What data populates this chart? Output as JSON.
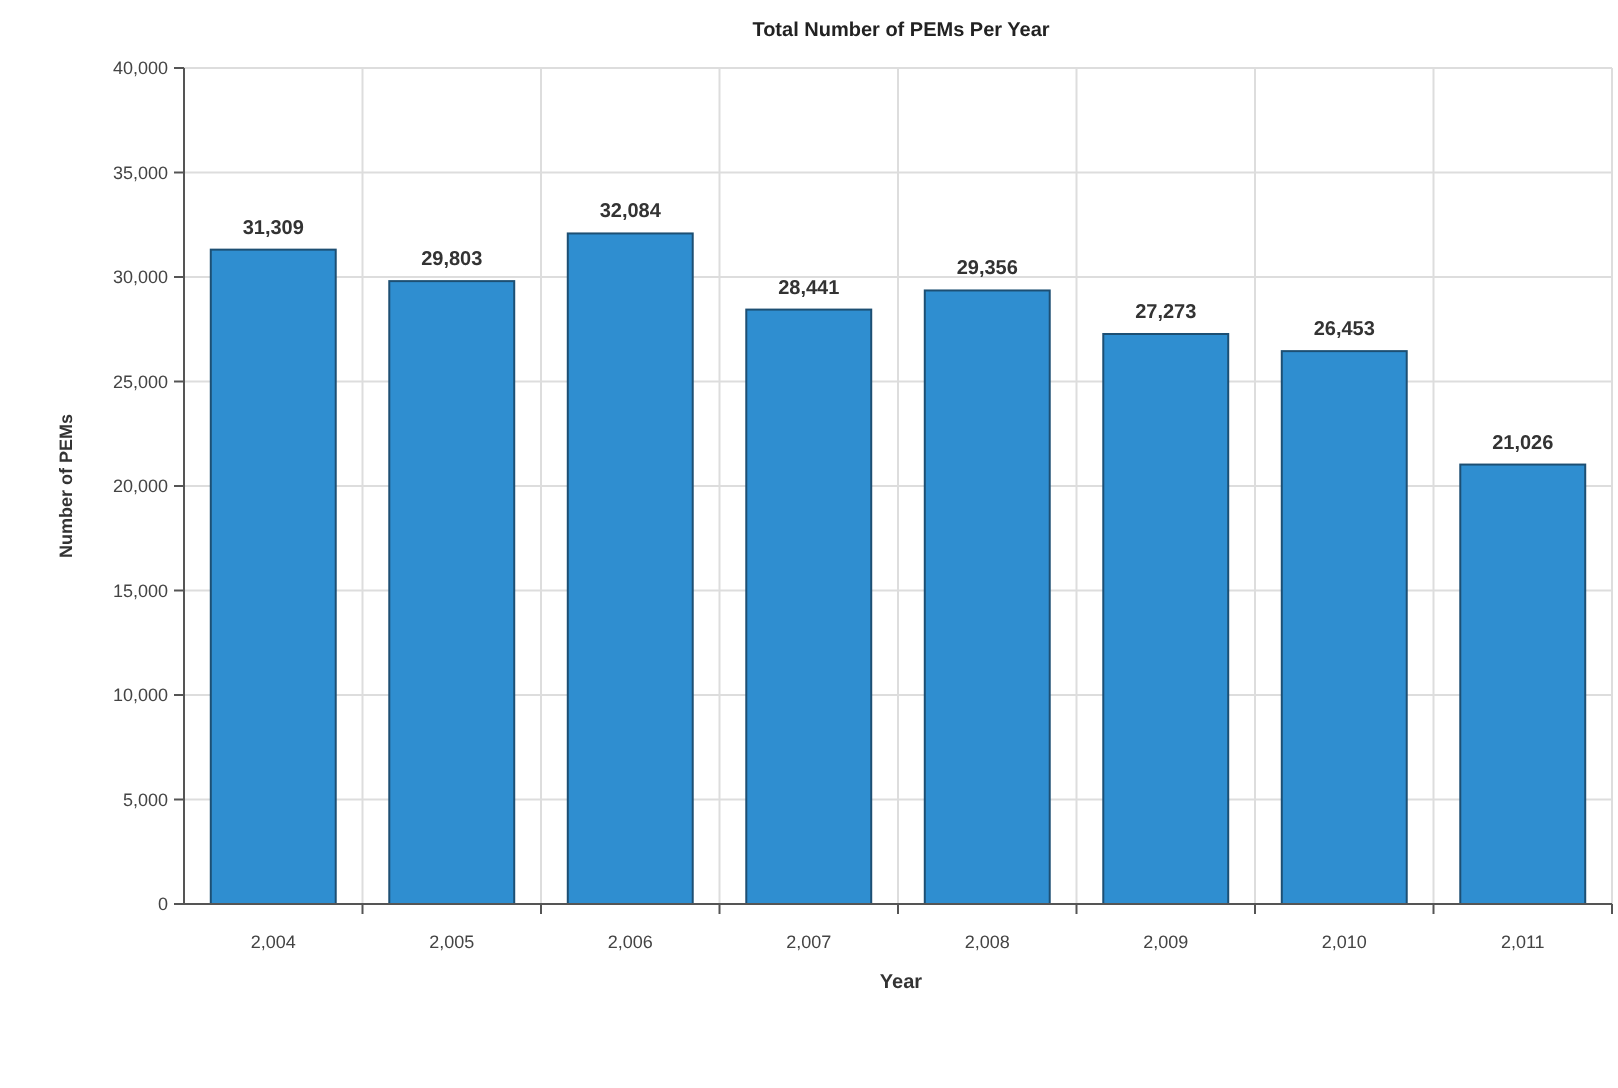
{
  "chart_data": {
    "type": "bar",
    "title": "Total Number of PEMs Per Year",
    "xlabel": "Year",
    "ylabel": "Number of PEMs",
    "categories": [
      "2,004",
      "2,005",
      "2,006",
      "2,007",
      "2,008",
      "2,009",
      "2,010",
      "2,011"
    ],
    "values": [
      31309,
      29803,
      32084,
      28441,
      29356,
      27273,
      26453,
      21026
    ],
    "value_labels": [
      "31,309",
      "29,803",
      "32,084",
      "28,441",
      "29,356",
      "27,273",
      "26,453",
      "21,026"
    ],
    "color": "#2f8ed0",
    "grid": true,
    "ylim": [
      0,
      40000
    ],
    "yticks": [
      {
        "value": 0,
        "label": "0"
      },
      {
        "value": 5000,
        "label": "5,000"
      },
      {
        "value": 10000,
        "label": "10,000"
      },
      {
        "value": 15000,
        "label": "15,000"
      },
      {
        "value": 20000,
        "label": "20,000"
      },
      {
        "value": 25000,
        "label": "25,000"
      },
      {
        "value": 30000,
        "label": "30,000"
      },
      {
        "value": 35000,
        "label": "35,000"
      },
      {
        "value": 40000,
        "label": "40,000"
      }
    ]
  }
}
